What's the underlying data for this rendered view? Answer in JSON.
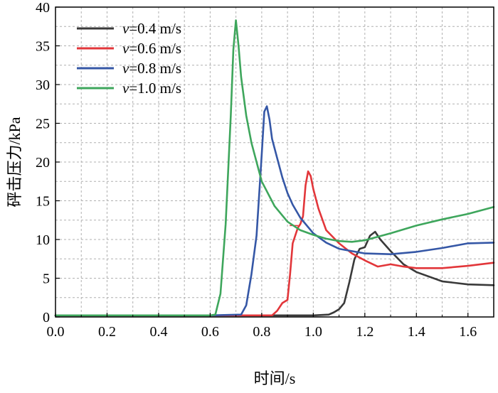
{
  "chart_data": {
    "type": "line",
    "xlabel": "时间/s",
    "ylabel": "砰击压力/kPa",
    "xlim": [
      0.0,
      1.7
    ],
    "ylim": [
      0,
      40
    ],
    "xticks": [
      "0.0",
      "0.2",
      "0.4",
      "0.6",
      "0.8",
      "1.0",
      "1.2",
      "1.4",
      "1.6"
    ],
    "yticks": [
      "0",
      "5",
      "10",
      "15",
      "20",
      "25",
      "30",
      "35",
      "40"
    ],
    "grid": true,
    "legend_position": "top-left",
    "series": [
      {
        "name": "v=0.4 m/s",
        "name_var": "v",
        "name_rest": "=0.4 m/s",
        "color": "#3a3a3a",
        "x": [
          0.0,
          0.6,
          1.0,
          1.06,
          1.08,
          1.1,
          1.12,
          1.14,
          1.16,
          1.18,
          1.2,
          1.22,
          1.24,
          1.26,
          1.3,
          1.35,
          1.4,
          1.5,
          1.6,
          1.7
        ],
        "y": [
          0.2,
          0.2,
          0.2,
          0.3,
          0.6,
          1.0,
          1.8,
          4.5,
          7.5,
          8.8,
          9.0,
          10.5,
          11.0,
          10.0,
          8.5,
          6.8,
          5.8,
          4.6,
          4.2,
          4.1
        ]
      },
      {
        "name": "v=0.6 m/s",
        "name_var": "v",
        "name_rest": "=0.6 m/s",
        "color": "#e2363a",
        "x": [
          0.0,
          0.6,
          0.84,
          0.86,
          0.88,
          0.9,
          0.91,
          0.92,
          0.94,
          0.95,
          0.96,
          0.97,
          0.98,
          0.99,
          1.0,
          1.02,
          1.05,
          1.1,
          1.15,
          1.2,
          1.25,
          1.3,
          1.35,
          1.4,
          1.5,
          1.6,
          1.7
        ],
        "y": [
          0.2,
          0.2,
          0.2,
          0.8,
          1.8,
          2.2,
          5.5,
          9.5,
          11.5,
          12.0,
          13.0,
          17.0,
          18.8,
          18.2,
          16.5,
          14.0,
          11.2,
          9.5,
          8.2,
          7.3,
          6.5,
          6.8,
          6.5,
          6.3,
          6.3,
          6.6,
          7.0
        ],
        "marker": true
      },
      {
        "name": "v=0.8 m/s",
        "name_var": "v",
        "name_rest": "=0.8 m/s",
        "color": "#3557a6",
        "x": [
          0.0,
          0.6,
          0.72,
          0.74,
          0.76,
          0.78,
          0.8,
          0.81,
          0.82,
          0.83,
          0.84,
          0.86,
          0.88,
          0.9,
          0.92,
          0.95,
          1.0,
          1.05,
          1.1,
          1.2,
          1.3,
          1.4,
          1.5,
          1.6,
          1.7
        ],
        "y": [
          0.2,
          0.2,
          0.3,
          1.5,
          5.5,
          10.5,
          21.0,
          26.5,
          27.2,
          25.5,
          23.0,
          20.5,
          18.0,
          16.0,
          14.5,
          12.8,
          10.8,
          9.6,
          8.8,
          8.2,
          8.1,
          8.4,
          8.9,
          9.5,
          9.6
        ]
      },
      {
        "name": "v=1.0 m/s",
        "name_var": "v",
        "name_rest": "=1.0 m/s",
        "color": "#3ea65c",
        "x": [
          0.0,
          0.6,
          0.62,
          0.64,
          0.66,
          0.68,
          0.69,
          0.7,
          0.71,
          0.72,
          0.74,
          0.76,
          0.8,
          0.85,
          0.9,
          0.95,
          1.0,
          1.05,
          1.1,
          1.15,
          1.2,
          1.3,
          1.4,
          1.5,
          1.6,
          1.7
        ],
        "y": [
          0.2,
          0.2,
          0.3,
          3.0,
          12.0,
          26.0,
          34.5,
          38.3,
          35.0,
          31.0,
          26.0,
          22.5,
          17.5,
          14.3,
          12.3,
          11.2,
          10.6,
          10.1,
          9.8,
          9.7,
          9.9,
          10.8,
          11.8,
          12.6,
          13.3,
          14.2
        ]
      }
    ]
  }
}
